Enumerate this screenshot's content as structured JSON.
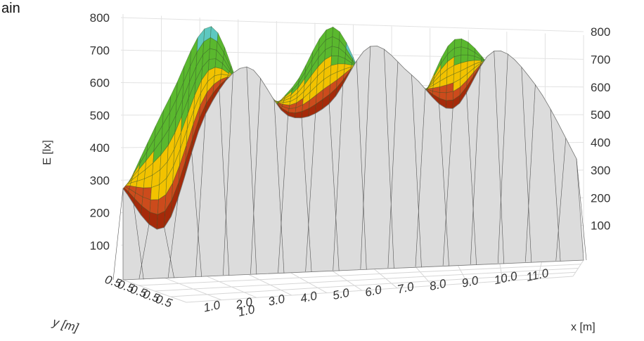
{
  "corner_text": "ain",
  "chart_data": {
    "type": "surface",
    "title": "",
    "zlabel": "E [lx]",
    "xlabel": "x [m]",
    "ylabel": "y [m]",
    "zlim": [
      0,
      800
    ],
    "z_ticks": [
      "100",
      "200",
      "300",
      "400",
      "500",
      "600",
      "700",
      "800"
    ],
    "x_ticks": [
      "1.0",
      "2.0",
      "3.0",
      "4.0",
      "5.0",
      "6.0",
      "7.0",
      "8.0",
      "9.0",
      "10.0",
      "11.0"
    ],
    "y_ticks": [
      "0.5",
      "0.5",
      "0.5",
      "0.5",
      "0.5"
    ],
    "y_ticks_front": [
      "1.0"
    ],
    "grid": true,
    "color_bands": [
      {
        "from": 0,
        "to": 200,
        "color": "#a52a0a"
      },
      {
        "from": 200,
        "to": 300,
        "color": "#cc4b1c"
      },
      {
        "from": 300,
        "to": 500,
        "color": "#f2c200"
      },
      {
        "from": 500,
        "to": 750,
        "color": "#5ab82e"
      },
      {
        "from": 750,
        "to": 800,
        "color": "#5ec8c0"
      }
    ],
    "back_profile": {
      "x": [
        0.0,
        1.0,
        2.0,
        3.0,
        4.0,
        5.0,
        6.0,
        7.0,
        8.0,
        9.0,
        10.0,
        11.0
      ],
      "E": [
        300,
        560,
        780,
        510,
        590,
        790,
        560,
        520,
        760,
        650,
        490,
        230
      ]
    },
    "front_profile": {
      "x": [
        0.0,
        1.0,
        2.0,
        3.0,
        4.0,
        5.0,
        6.0,
        7.0,
        8.0,
        9.0,
        10.0,
        11.0
      ],
      "E": [
        180,
        100,
        320,
        410,
        310,
        330,
        440,
        380,
        310,
        420,
        350,
        200
      ]
    }
  }
}
